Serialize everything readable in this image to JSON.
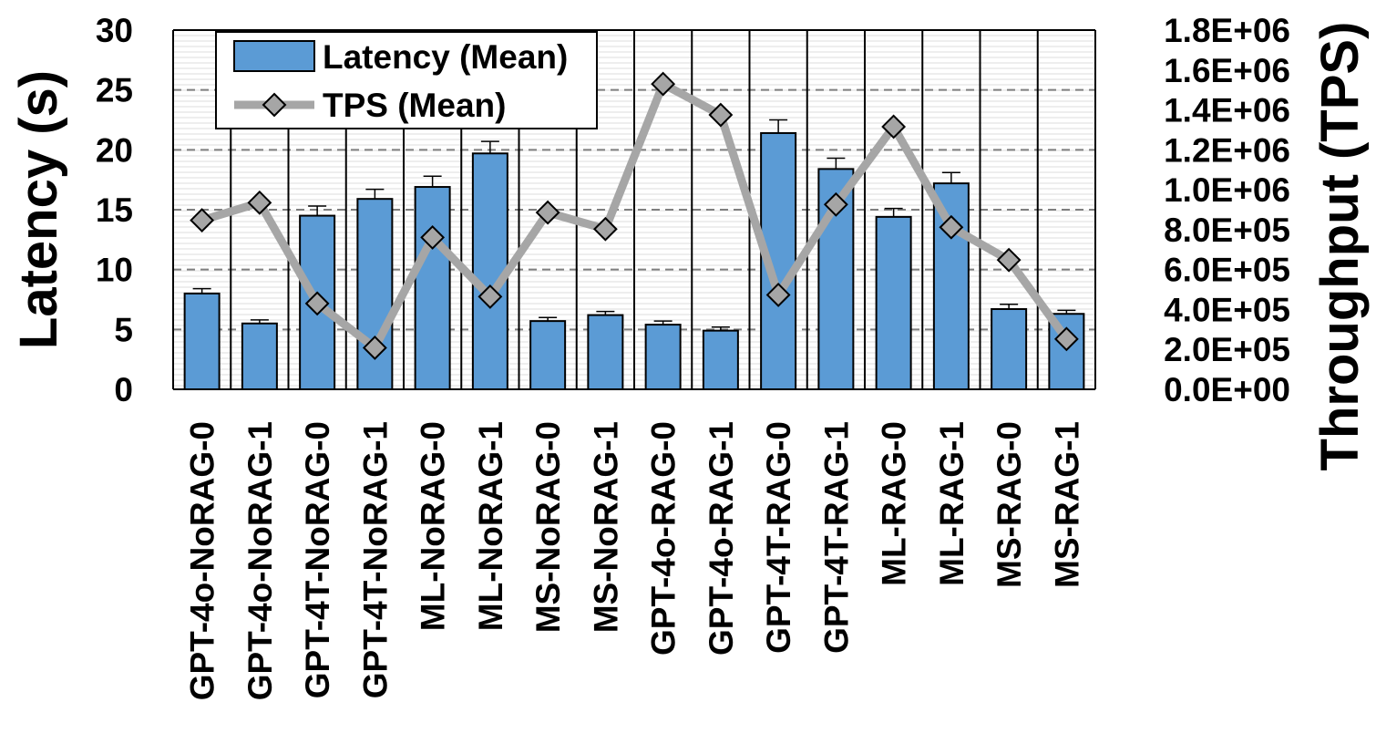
{
  "chart_data": {
    "type": "bar",
    "categories": [
      "GPT-4o-NoRAG-0",
      "GPT-4o-NoRAG-1",
      "GPT-4T-NoRAG-0",
      "GPT-4T-NoRAG-1",
      "ML-NoRAG-0",
      "ML-NoRAG-1",
      "MS-NoRAG-0",
      "MS-NoRAG-1",
      "GPT-4o-RAG-0",
      "GPT-4o-RAG-1",
      "GPT-4T-RAG-0",
      "GPT-4T-RAG-1",
      "ML-RAG-0",
      "ML-RAG-1",
      "MS-RAG-0",
      "MS-RAG-1"
    ],
    "series": [
      {
        "name": "Latency (Mean)",
        "type": "bar",
        "axis": "left",
        "color": "#5B9BD5",
        "values": [
          8.0,
          5.5,
          14.5,
          15.9,
          16.9,
          19.7,
          5.7,
          6.2,
          5.4,
          4.9,
          21.4,
          18.4,
          14.4,
          17.2,
          6.7,
          6.3
        ],
        "error": [
          0.4,
          0.3,
          0.8,
          0.8,
          0.9,
          1.0,
          0.3,
          0.3,
          0.3,
          0.3,
          1.1,
          0.9,
          0.7,
          0.9,
          0.4,
          0.3
        ]
      },
      {
        "name": "TPS (Mean)",
        "type": "line",
        "axis": "right",
        "color": "#A6A6A6",
        "marker": "diamond",
        "values": [
          847000,
          935000,
          430000,
          208000,
          761000,
          464000,
          886000,
          803000,
          1530000,
          1375000,
          473000,
          926000,
          1316000,
          812000,
          648000,
          252000
        ]
      }
    ],
    "yaxis_left": {
      "label": "Latency (s)",
      "ylim": [
        0,
        30
      ],
      "ticks": [
        "0",
        "5",
        "10",
        "15",
        "20",
        "25",
        "30"
      ]
    },
    "yaxis_right": {
      "label": "Throughput (TPS)",
      "ylim": [
        0,
        1800000
      ],
      "ticks": [
        "0.0E+00",
        "2.0E+05",
        "4.0E+05",
        "6.0E+05",
        "8.0E+05",
        "1.0E+06",
        "1.2E+06",
        "1.4E+06",
        "1.6E+06",
        "1.8E+06"
      ]
    },
    "grid": true,
    "legend_position": "top-left"
  }
}
